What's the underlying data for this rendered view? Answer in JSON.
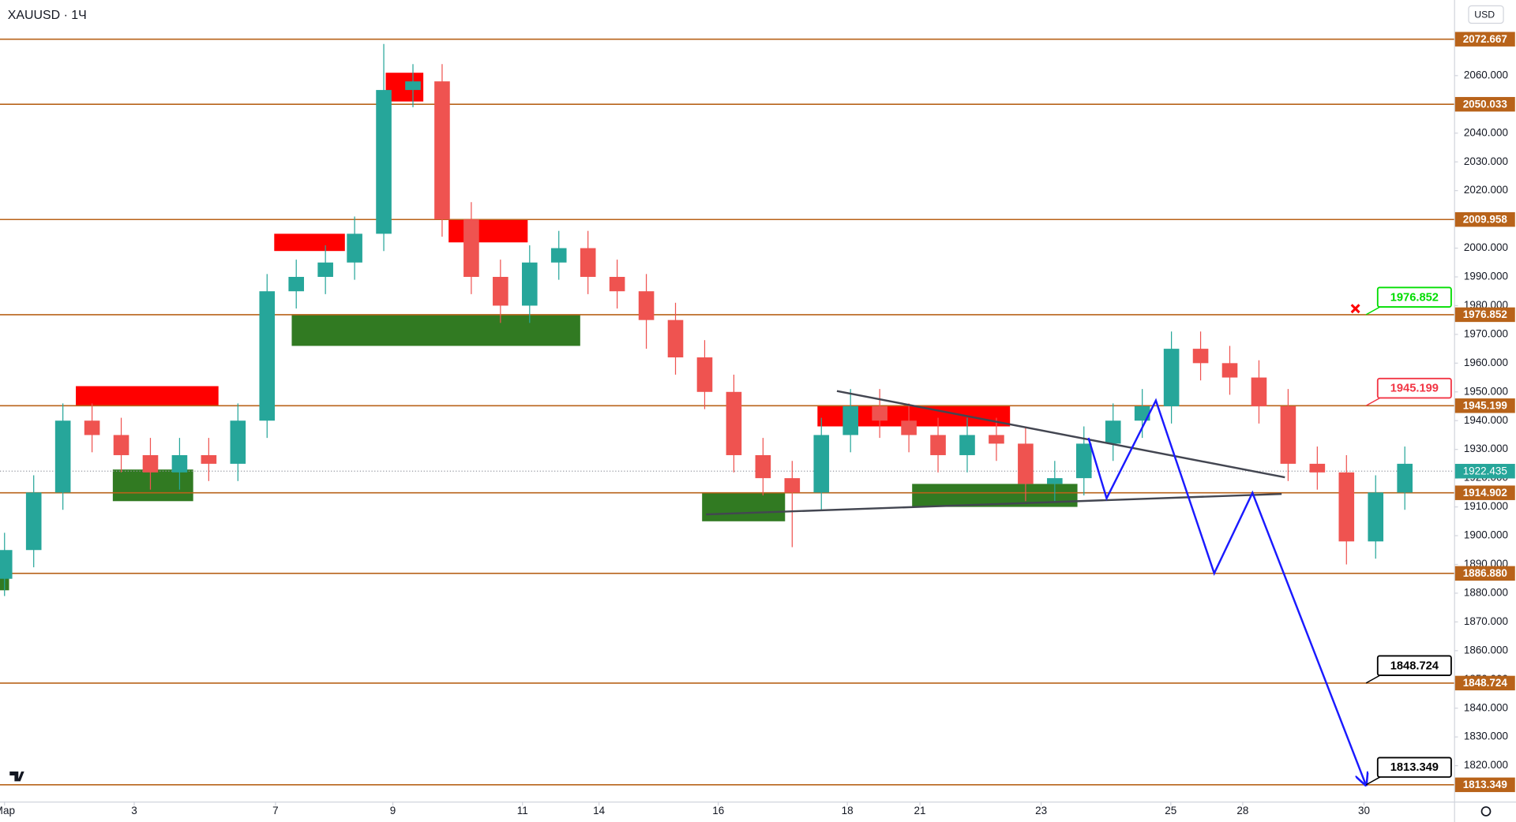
{
  "chart_data": {
    "type": "candlestick",
    "title": "XAUUSD · 1Ч",
    "currency": "USD",
    "x": [
      0,
      0.45,
      0.9,
      1.35,
      1.8,
      2.25,
      2.7,
      3.15,
      3.6,
      4.05,
      4.5,
      4.95,
      5.4,
      5.85,
      6.3,
      6.75,
      7.2,
      7.65,
      8.1,
      8.55,
      9.0,
      9.45,
      9.9,
      10.35,
      10.8,
      11.25,
      11.7,
      12.15,
      12.6,
      13.05,
      13.5,
      13.95,
      14.4,
      14.85,
      15.3,
      15.75,
      16.2,
      16.65,
      17.1,
      17.55,
      18.0,
      18.45,
      18.9,
      19.35,
      19.8,
      20.25,
      20.7,
      21.15,
      21.6
    ],
    "open": [
      1885,
      1895,
      1915,
      1940,
      1935,
      1928,
      1922,
      1928,
      1925,
      1940,
      1985,
      1990,
      1995,
      2005,
      2055,
      2058,
      2010,
      1990,
      1980,
      1995,
      2000,
      1990,
      1985,
      1975,
      1962,
      1950,
      1928,
      1920,
      1915,
      1935,
      1945,
      1940,
      1935,
      1928,
      1935,
      1932,
      1918,
      1920,
      1932,
      1940,
      1945,
      1965,
      1960,
      1955,
      1945,
      1925,
      1922,
      1898,
      1915
    ],
    "high": [
      1901,
      1921,
      1946,
      1946,
      1941,
      1934,
      1934,
      1934,
      1946,
      1991,
      1996,
      2001,
      2011,
      2071,
      2064,
      2064,
      2016,
      1996,
      2001,
      2006,
      2006,
      1996,
      1991,
      1981,
      1968,
      1956,
      1934,
      1926,
      1941,
      1951,
      1951,
      1946,
      1941,
      1941,
      1941,
      1938,
      1926,
      1938,
      1946,
      1951,
      1971,
      1971,
      1966,
      1961,
      1951,
      1931,
      1928,
      1921,
      1931
    ],
    "low": [
      1879,
      1889,
      1909,
      1929,
      1922,
      1916,
      1916,
      1919,
      1919,
      1934,
      1979,
      1984,
      1989,
      1999,
      2049,
      2004,
      1984,
      1974,
      1974,
      1989,
      1984,
      1979,
      1965,
      1956,
      1944,
      1922,
      1914,
      1896,
      1909,
      1929,
      1934,
      1929,
      1922,
      1922,
      1926,
      1912,
      1912,
      1914,
      1926,
      1934,
      1939,
      1954,
      1949,
      1939,
      1919,
      1916,
      1890,
      1892,
      1909
    ],
    "close": [
      1895,
      1915,
      1940,
      1935,
      1928,
      1922,
      1928,
      1925,
      1940,
      1985,
      1990,
      1995,
      2005,
      2055,
      2058,
      2010,
      1990,
      1980,
      1995,
      2000,
      1990,
      1985,
      1975,
      1962,
      1950,
      1928,
      1920,
      1915,
      1935,
      1945,
      1940,
      1935,
      1928,
      1935,
      1932,
      1918,
      1920,
      1932,
      1940,
      1945,
      1965,
      1960,
      1955,
      1945,
      1925,
      1922,
      1898,
      1915,
      1925
    ],
    "up_color": "#26a69a",
    "down_color": "#ef5350",
    "xlim": [
      -0.07,
      22.36
    ],
    "xticks": [
      {
        "value": 0,
        "label": "Мар"
      },
      {
        "value": 2.0,
        "label": "3"
      },
      {
        "value": 4.18,
        "label": "7"
      },
      {
        "value": 5.99,
        "label": "9"
      },
      {
        "value": 7.99,
        "label": "11"
      },
      {
        "value": 9.17,
        "label": "14"
      },
      {
        "value": 11.01,
        "label": "16"
      },
      {
        "value": 13.0,
        "label": "18"
      },
      {
        "value": 14.12,
        "label": "21"
      },
      {
        "value": 15.99,
        "label": "23"
      },
      {
        "value": 17.99,
        "label": "25"
      },
      {
        "value": 19.1,
        "label": "28"
      },
      {
        "value": 20.97,
        "label": "30"
      }
    ],
    "ylim": [
      1807.5,
      2086.3
    ],
    "yticks": [
      {
        "value": 1820,
        "label": "1820.000"
      },
      {
        "value": 1830,
        "label": "1830.000"
      },
      {
        "value": 1840,
        "label": "1840.000"
      },
      {
        "value": 1850,
        "label": "1850.000"
      },
      {
        "value": 1860,
        "label": "1860.000"
      },
      {
        "value": 1870,
        "label": "1870.000"
      },
      {
        "value": 1880,
        "label": "1880.000"
      },
      {
        "value": 1890,
        "label": "1890.000"
      },
      {
        "value": 1900,
        "label": "1900.000"
      },
      {
        "value": 1910,
        "label": "1910.000"
      },
      {
        "value": 1920,
        "label": "1920.000"
      },
      {
        "value": 1930,
        "label": "1930.000"
      },
      {
        "value": 1940,
        "label": "1940.000"
      },
      {
        "value": 1950,
        "label": "1950.000"
      },
      {
        "value": 1960,
        "label": "1960.000"
      },
      {
        "value": 1970,
        "label": "1970.000"
      },
      {
        "value": 1980,
        "label": "1980.000"
      },
      {
        "value": 1990,
        "label": "1990.000"
      },
      {
        "value": 2000,
        "label": "2000.000"
      },
      {
        "value": 2010,
        "label": "2010.000"
      },
      {
        "value": 2020,
        "label": "2020.000"
      },
      {
        "value": 2030,
        "label": "2030.000"
      },
      {
        "value": 2040,
        "label": "2040.000"
      },
      {
        "value": 2050,
        "label": "2050.000"
      },
      {
        "value": 2060,
        "label": "2060.000"
      }
    ],
    "grid": false,
    "levels": [
      2072.667,
      2050.033,
      2009.958,
      1976.852,
      1945.199,
      1914.902,
      1886.88,
      1848.724,
      1813.349
    ],
    "level_labels": [
      "2072.667",
      "2050.033",
      "2009.958",
      "1976.852",
      "1945.199",
      "1914.902",
      "1886.880",
      "1848.724",
      "1813.349"
    ],
    "level_color": "#b8631a",
    "last_price": 1922.435,
    "zones": [
      {
        "x": [
          1.1,
          3.3
        ],
        "price": [
          1945,
          1952
        ],
        "color": "#ff0000"
      },
      {
        "x": [
          4.16,
          5.25
        ],
        "price": [
          1999,
          2005
        ],
        "color": "#ff0000"
      },
      {
        "x": [
          5.88,
          6.46
        ],
        "price": [
          2051,
          2061
        ],
        "color": "#ff0000"
      },
      {
        "x": [
          6.85,
          8.07
        ],
        "price": [
          2002,
          2010
        ],
        "color": "#ff0000"
      },
      {
        "x": [
          12.54,
          15.51
        ],
        "price": [
          1938,
          1945
        ],
        "color": "#ff0000"
      },
      {
        "x": [
          -0.07,
          0.07
        ],
        "price": [
          1881,
          1891
        ],
        "color": "#317a22"
      },
      {
        "x": [
          1.67,
          2.91
        ],
        "price": [
          1912,
          1923
        ],
        "color": "#317a22"
      },
      {
        "x": [
          4.43,
          8.88
        ],
        "price": [
          1966,
          1977
        ],
        "color": "#317a22"
      },
      {
        "x": [
          10.76,
          12.04
        ],
        "price": [
          1905,
          1915
        ],
        "color": "#317a22"
      },
      {
        "x": [
          14.0,
          16.55
        ],
        "price": [
          1910,
          1918
        ],
        "color": "#317a22"
      }
    ],
    "trendlines": [
      {
        "x": [
          12.84,
          19.75
        ],
        "price": [
          1950.3,
          1920.3
        ]
      },
      {
        "x": [
          10.82,
          19.7
        ],
        "price": [
          1907.4,
          1914.5
        ]
      }
    ],
    "projection": {
      "x": [
        16.72,
        17.0,
        17.76,
        18.66,
        19.25,
        21.0
      ],
      "price": [
        1934,
        1913,
        1947,
        1886.9,
        1914.9,
        1813.3
      ],
      "color": "#1a1aff"
    },
    "callouts": [
      {
        "price": 1976.852,
        "label": "1976.852",
        "color": "#00dd00"
      },
      {
        "price": 1945.199,
        "label": "1945.199",
        "color": "#f23645"
      },
      {
        "price": 1848.724,
        "label": "1848.724",
        "color": "#000000"
      },
      {
        "price": 1813.349,
        "label": "1813.349",
        "color": "#000000"
      }
    ]
  }
}
